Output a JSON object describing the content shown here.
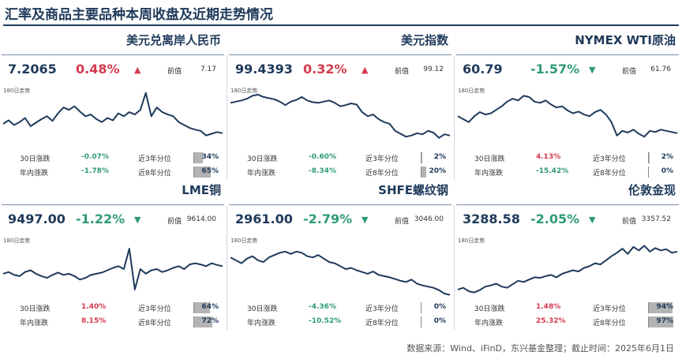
{
  "title": "汇率及商品主要品种本周收盘及近期走势情况",
  "labels": {
    "prev": "前值",
    "spark": "180日走势",
    "m30": "30日涨跌",
    "ytd": "年内涨跌",
    "q3": "近3年分位",
    "q8": "近8年分位"
  },
  "colors": {
    "up": "#d43a4f",
    "down": "#2f9a7a",
    "line": "#1f3a5a",
    "bar": "#b3b3b3"
  },
  "footer": "数据来源：Wind、iFinD，东兴基金整理；截止时间：2025年6月1日",
  "panels": [
    {
      "name": "美元兑离岸人民币",
      "value": "7.2065",
      "change": "0.48%",
      "direction": "up",
      "prev": "7.17",
      "m30": "-0.07%",
      "ytd": "-1.78%",
      "q3": "34%",
      "q8": "65%"
    },
    {
      "name": "美元指数",
      "value": "99.4393",
      "change": "0.32%",
      "direction": "up",
      "prev": "99.12",
      "m30": "-0.60%",
      "ytd": "-8.34%",
      "q3": "2%",
      "q8": "20%"
    },
    {
      "name": "NYMEX WTI原油",
      "value": "60.79",
      "change": "-1.57%",
      "direction": "down",
      "prev": "61.76",
      "m30": "4.13%",
      "ytd": "-15.42%",
      "q3": "2%",
      "q8": "0%"
    },
    {
      "name": "LME铜",
      "value": "9497.00",
      "change": "-1.22%",
      "direction": "down",
      "prev": "9614.00",
      "m30": "1.40%",
      "ytd": "8.15%",
      "q3": "64%",
      "q8": "72%"
    },
    {
      "name": "SHFE螺纹钢",
      "value": "2961.00",
      "change": "-2.79%",
      "direction": "down",
      "prev": "3046.00",
      "m30": "-4.36%",
      "ytd": "-10.52%",
      "q3": "0%",
      "q8": "0%"
    },
    {
      "name": "伦敦金现",
      "value": "3288.58",
      "change": "-2.05%",
      "direction": "down",
      "prev": "3357.52",
      "m30": "1.48%",
      "ytd": "25.32%",
      "q3": "94%",
      "q8": "97%"
    }
  ],
  "chart_data": [
    {
      "type": "line",
      "title": "美元兑离岸人民币",
      "trend": [
        0.42,
        0.48,
        0.4,
        0.45,
        0.52,
        0.38,
        0.44,
        0.5,
        0.55,
        0.47,
        0.6,
        0.7,
        0.66,
        0.72,
        0.63,
        0.55,
        0.58,
        0.5,
        0.45,
        0.52,
        0.48,
        0.6,
        0.55,
        0.62,
        0.58,
        0.66,
        0.95,
        0.55,
        0.7,
        0.62,
        0.58,
        0.55,
        0.45,
        0.4,
        0.35,
        0.32,
        0.3,
        0.22,
        0.25,
        0.28,
        0.26
      ]
    },
    {
      "type": "line",
      "title": "美元指数",
      "trend": [
        0.78,
        0.8,
        0.82,
        0.85,
        0.9,
        0.92,
        0.88,
        0.86,
        0.84,
        0.8,
        0.74,
        0.8,
        0.83,
        0.88,
        0.82,
        0.79,
        0.78,
        0.8,
        0.82,
        0.78,
        0.72,
        0.74,
        0.77,
        0.75,
        0.62,
        0.55,
        0.58,
        0.5,
        0.45,
        0.42,
        0.3,
        0.25,
        0.2,
        0.22,
        0.26,
        0.24,
        0.3,
        0.27,
        0.18,
        0.24,
        0.22
      ]
    },
    {
      "type": "line",
      "title": "NYMEX WTI原油",
      "trend": [
        0.55,
        0.5,
        0.45,
        0.55,
        0.62,
        0.58,
        0.6,
        0.66,
        0.72,
        0.8,
        0.85,
        0.82,
        0.9,
        0.88,
        0.8,
        0.78,
        0.82,
        0.75,
        0.7,
        0.72,
        0.65,
        0.6,
        0.63,
        0.58,
        0.55,
        0.62,
        0.66,
        0.58,
        0.45,
        0.22,
        0.3,
        0.27,
        0.32,
        0.25,
        0.2,
        0.3,
        0.28,
        0.32,
        0.3,
        0.28,
        0.26
      ]
    },
    {
      "type": "line",
      "title": "LME铜",
      "trend": [
        0.42,
        0.45,
        0.4,
        0.38,
        0.45,
        0.48,
        0.42,
        0.38,
        0.35,
        0.4,
        0.44,
        0.4,
        0.42,
        0.38,
        0.32,
        0.35,
        0.4,
        0.42,
        0.44,
        0.48,
        0.52,
        0.55,
        0.5,
        0.85,
        0.15,
        0.5,
        0.42,
        0.48,
        0.5,
        0.45,
        0.48,
        0.52,
        0.55,
        0.5,
        0.58,
        0.6,
        0.58,
        0.55,
        0.6,
        0.57,
        0.55
      ]
    },
    {
      "type": "line",
      "title": "SHFE螺纹钢",
      "trend": [
        0.7,
        0.65,
        0.6,
        0.68,
        0.72,
        0.65,
        0.62,
        0.7,
        0.74,
        0.78,
        0.8,
        0.76,
        0.8,
        0.78,
        0.72,
        0.7,
        0.74,
        0.68,
        0.62,
        0.6,
        0.55,
        0.5,
        0.52,
        0.48,
        0.45,
        0.42,
        0.46,
        0.4,
        0.38,
        0.36,
        0.33,
        0.3,
        0.28,
        0.32,
        0.25,
        0.22,
        0.2,
        0.18,
        0.14,
        0.08,
        0.06
      ]
    },
    {
      "type": "line",
      "title": "伦敦金现",
      "trend": [
        0.15,
        0.18,
        0.12,
        0.1,
        0.14,
        0.2,
        0.22,
        0.25,
        0.2,
        0.18,
        0.24,
        0.3,
        0.28,
        0.32,
        0.36,
        0.35,
        0.38,
        0.4,
        0.36,
        0.42,
        0.45,
        0.48,
        0.46,
        0.52,
        0.55,
        0.6,
        0.58,
        0.65,
        0.72,
        0.78,
        0.85,
        0.76,
        0.88,
        0.82,
        0.9,
        0.8,
        0.86,
        0.82,
        0.84,
        0.78,
        0.8
      ]
    }
  ]
}
